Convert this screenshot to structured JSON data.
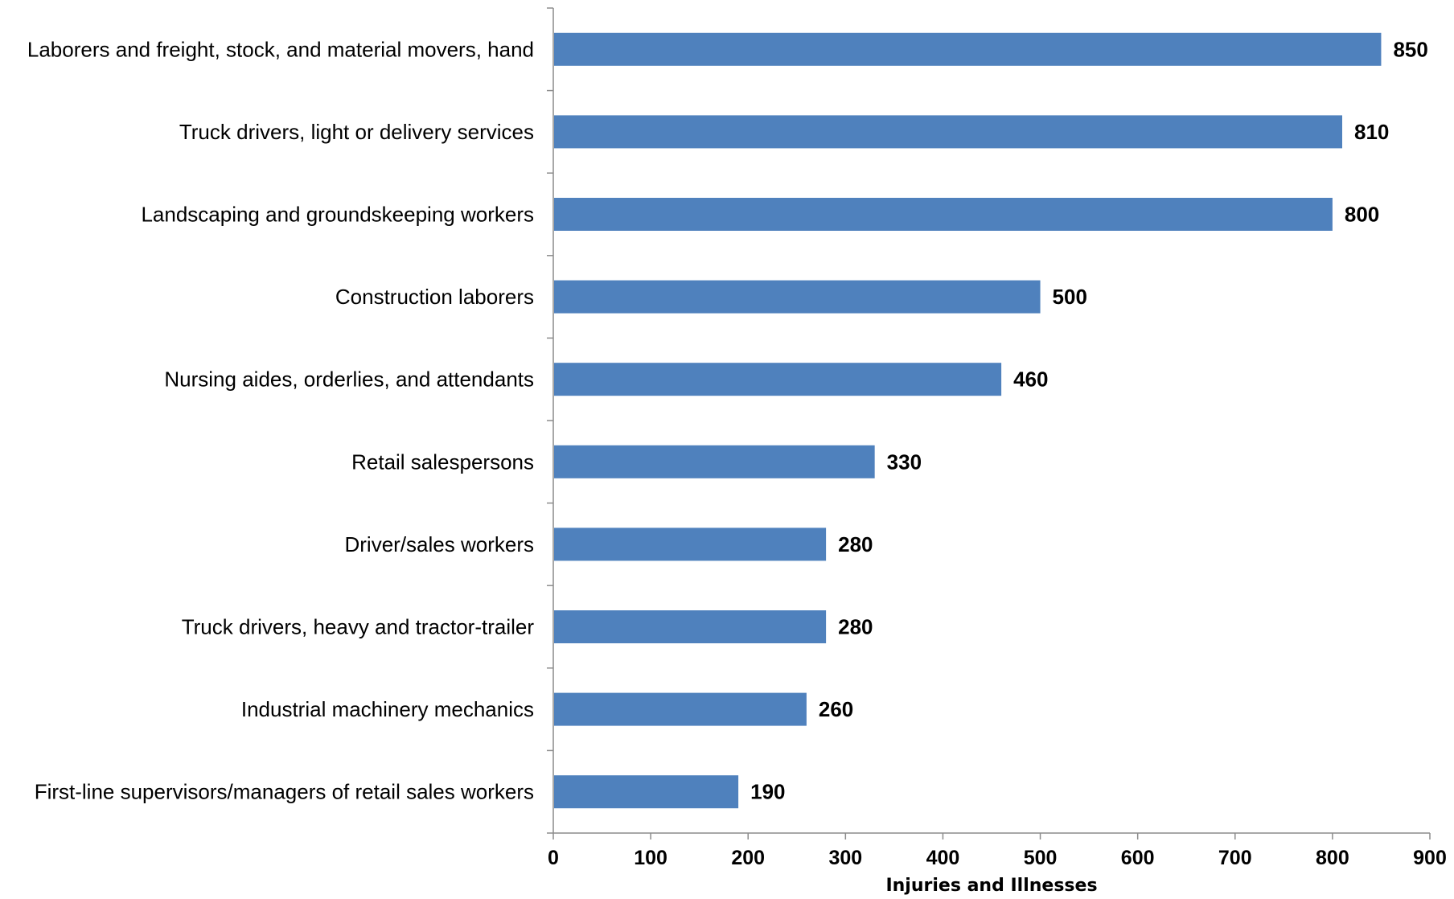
{
  "chart_data": {
    "type": "bar",
    "orientation": "horizontal",
    "categories": [
      "Laborers and freight, stock, and material movers, hand",
      "Truck drivers, light or delivery services",
      "Landscaping and groundskeeping workers",
      "Construction laborers",
      "Nursing aides, orderlies, and attendants",
      "Retail salespersons",
      "Driver/sales workers",
      "Truck drivers, heavy and tractor-trailer",
      "Industrial machinery mechanics",
      "First-line supervisors/managers of retail sales workers"
    ],
    "values": [
      850,
      810,
      800,
      500,
      460,
      330,
      280,
      280,
      260,
      190
    ],
    "xlabel": "Injuries and Illnesses",
    "xlim": [
      0,
      900
    ],
    "xticks": [
      "0",
      "100",
      "200",
      "300",
      "400",
      "500",
      "600",
      "700",
      "800",
      "900"
    ],
    "grid": false,
    "legend": "none",
    "bar_color": "#4f81bd"
  }
}
